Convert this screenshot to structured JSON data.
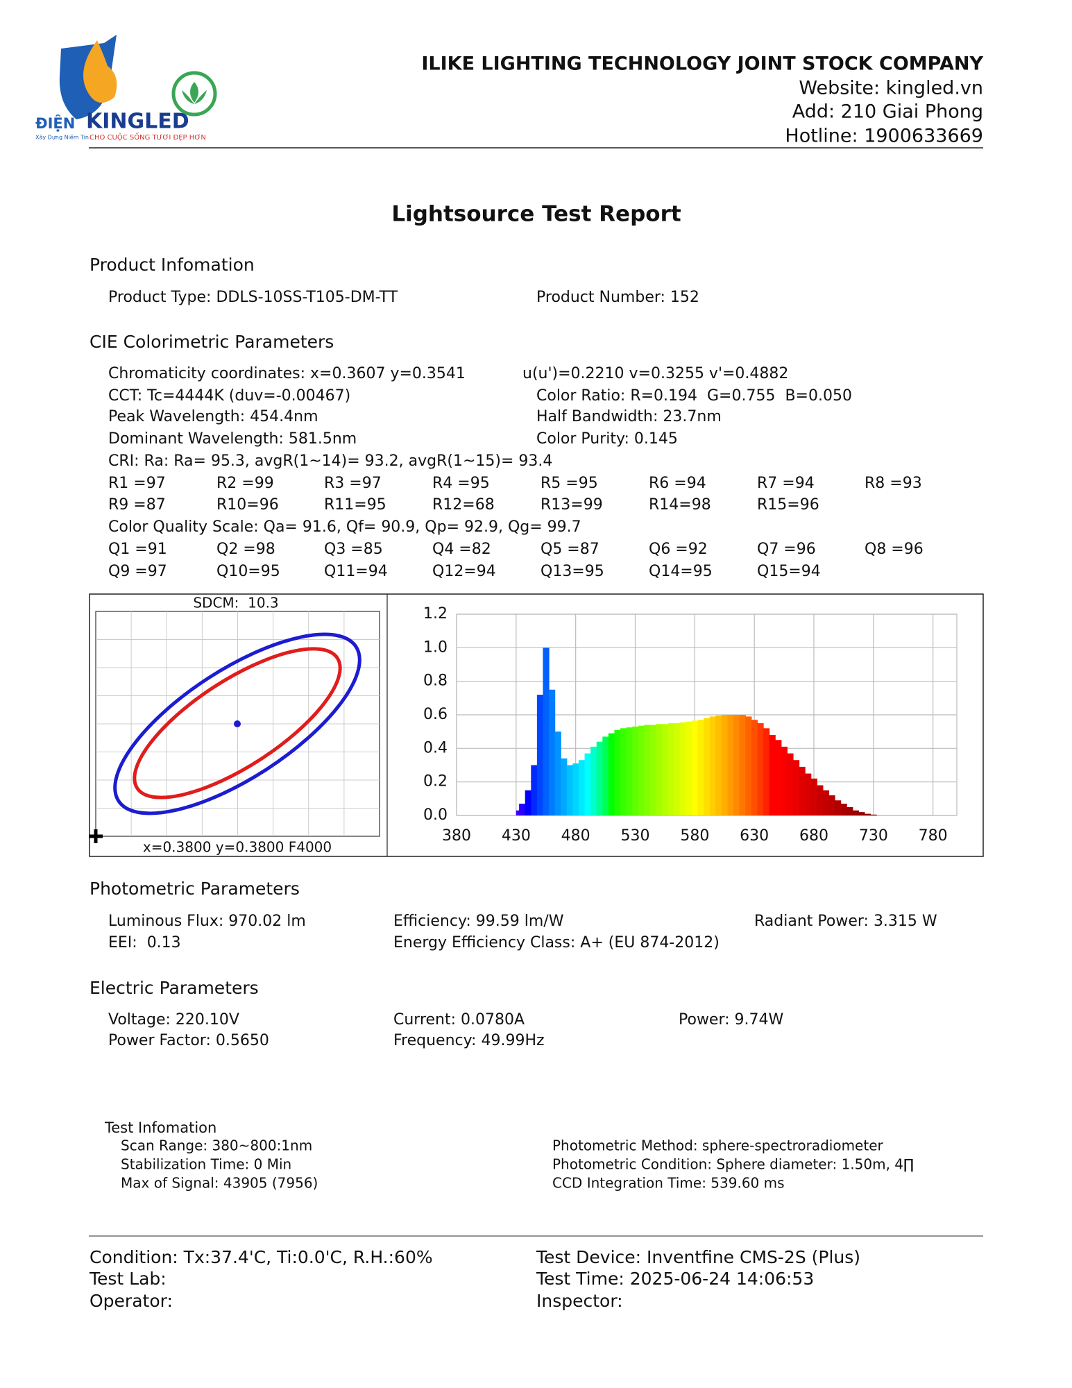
{
  "header": {
    "company": "ILIKE LIGHTING TECHNOLOGY JOINT STOCK COMPANY",
    "website": "Website: kingled.vn",
    "address": "Add: 210 Giai Phong",
    "hotline": "Hotline: 1900633669"
  },
  "logo": {
    "prefix": "ĐIỆN",
    "brand": "KINGLED",
    "tagline": "Xây Dựng Niềm Tin",
    "slogan": "CHO CUỘC SỐNG TƯƠI ĐẸP HƠN"
  },
  "title": "Lightsource Test Report",
  "product": {
    "heading": "Product Infomation",
    "type": "Product Type: DDLS-10SS-T105-DM-TT",
    "number": "Product Number: 152"
  },
  "cie": {
    "heading": "CIE Colorimetric Parameters",
    "chromaticity": "Chromaticity coordinates: x=0.3607 y=0.3541",
    "uv": "u(u')=0.2210 v=0.3255 v'=0.4882",
    "cct": "CCT: Tc=4444K (duv=-0.00467)",
    "color_ratio": "Color Ratio: R=0.194  G=0.755  B=0.050",
    "peak": "Peak Wavelength: 454.4nm",
    "half_bandwidth": "Half Bandwidth: 23.7nm",
    "dominant": "Dominant Wavelength: 581.5nm",
    "purity": "Color Purity: 0.145",
    "cri": "CRI: Ra: Ra= 95.3, avgR(1~14)= 93.2, avgR(1~15)= 93.4",
    "r_values": [
      [
        "R1 =97",
        "R2 =99",
        "R3 =97",
        "R4 =95",
        "R5 =95",
        "R6 =94",
        "R7 =94",
        "R8 =93"
      ],
      [
        "R9 =87",
        "R10=96",
        "R11=95",
        "R12=68",
        "R13=99",
        "R14=98",
        "R15=96"
      ]
    ],
    "cqs": "Color Quality Scale: Qa= 91.6, Qf= 90.9, Qp= 92.9, Qg= 99.7",
    "q_values": [
      [
        "Q1 =91",
        "Q2 =98",
        "Q3 =85",
        "Q4 =82",
        "Q5 =87",
        "Q6 =92",
        "Q7 =96",
        "Q8 =96"
      ],
      [
        "Q9 =97",
        "Q10=95",
        "Q11=94",
        "Q12=94",
        "Q13=95",
        "Q14=95",
        "Q15=94"
      ]
    ]
  },
  "sdcm": {
    "label": "SDCM:  10.3",
    "reference": "x=0.3800 y=0.3800 F4000"
  },
  "chart_data": {
    "type": "area",
    "x": [
      430,
      435,
      440,
      445,
      450,
      455,
      460,
      465,
      470,
      475,
      480,
      485,
      490,
      495,
      500,
      505,
      510,
      515,
      520,
      525,
      530,
      535,
      540,
      545,
      550,
      555,
      560,
      565,
      570,
      575,
      580,
      585,
      590,
      595,
      600,
      605,
      610,
      615,
      620,
      625,
      630,
      635,
      640,
      645,
      650,
      655,
      660,
      665,
      670,
      675,
      680,
      685,
      690,
      695,
      700,
      705,
      710,
      715,
      720,
      725,
      730,
      735
    ],
    "values": [
      0.03,
      0.07,
      0.15,
      0.3,
      0.72,
      1.0,
      0.75,
      0.5,
      0.34,
      0.3,
      0.31,
      0.33,
      0.37,
      0.41,
      0.44,
      0.47,
      0.49,
      0.51,
      0.52,
      0.525,
      0.53,
      0.535,
      0.54,
      0.54,
      0.545,
      0.545,
      0.55,
      0.55,
      0.555,
      0.56,
      0.565,
      0.57,
      0.58,
      0.59,
      0.595,
      0.6,
      0.6,
      0.6,
      0.6,
      0.59,
      0.57,
      0.55,
      0.52,
      0.48,
      0.45,
      0.41,
      0.37,
      0.33,
      0.29,
      0.25,
      0.22,
      0.18,
      0.15,
      0.12,
      0.09,
      0.07,
      0.05,
      0.03,
      0.02,
      0.01,
      0.005,
      0
    ],
    "xlim": [
      380,
      800
    ],
    "xticks": [
      380,
      430,
      480,
      530,
      580,
      630,
      680,
      730,
      780
    ],
    "ylim": [
      0,
      1.2
    ],
    "yticks": [
      {
        "value": 0,
        "label": "0.0"
      },
      0.2,
      0.4,
      0.6,
      0.8,
      {
        "value": 1,
        "label": "1.0"
      },
      1.2
    ],
    "grid": true
  },
  "photometric": {
    "heading": "Photometric Parameters",
    "flux": "Luminous Flux: 970.02 lm",
    "efficiency": "Efficiency: 99.59 lm/W",
    "radiant": "Radiant Power: 3.315 W",
    "eei": "EEI:  0.13",
    "energy_class": "Energy Efficiency Class: A+ (EU 874-2012)"
  },
  "electric": {
    "heading": "Electric Parameters",
    "voltage": "Voltage: 220.10V",
    "current": "Current: 0.0780A",
    "power": "Power: 9.74W",
    "power_factor": "Power Factor: 0.5650",
    "frequency": "Frequency: 49.99Hz"
  },
  "test_info": {
    "heading": "Test Infomation",
    "scan": "Scan Range: 380~800:1nm",
    "stabilization": "Stabilization Time: 0 Min",
    "signal": "Max of Signal: 43905 (7956)",
    "method": "Photometric Method: sphere-spectroradiometer",
    "condition": "Photometric Condition: Sphere diameter: 1.50m, 4∏",
    "ccd": "CCD Integration Time: 539.60 ms"
  },
  "footer": {
    "condition": "Condition: Tx:37.4'C, Ti:0.0'C, R.H.:60%",
    "lab": "Test Lab:",
    "operator": "Operator:",
    "device": "Test Device: Inventfine CMS-2S (Plus)",
    "time": "Test Time: 2025-06-24 14:06:53",
    "inspector": "Inspector:"
  }
}
